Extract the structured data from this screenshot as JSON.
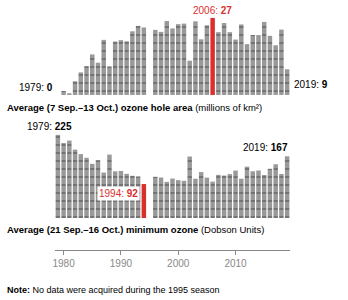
{
  "chart_data": [
    {
      "type": "bar",
      "title": "Average (7 Sep.–13 Oct.) ozone hole area",
      "unit_label": "(millions of km²)",
      "x": [
        1979,
        1980,
        1981,
        1982,
        1983,
        1984,
        1985,
        1986,
        1987,
        1988,
        1989,
        1990,
        1991,
        1992,
        1993,
        1994,
        1995,
        1996,
        1997,
        1998,
        1999,
        2000,
        2001,
        2002,
        2003,
        2004,
        2005,
        2006,
        2007,
        2008,
        2009,
        2010,
        2011,
        2012,
        2013,
        2014,
        2015,
        2016,
        2017,
        2018,
        2019
      ],
      "values": [
        0,
        1.4,
        0.6,
        4.8,
        7.9,
        10.1,
        14.2,
        11.3,
        19.3,
        10.0,
        18.7,
        19.2,
        18.8,
        22.3,
        24.2,
        23.6,
        null,
        22.8,
        22.1,
        25.9,
        23.3,
        24.8,
        25.0,
        12.0,
        25.8,
        19.5,
        24.4,
        27,
        22.0,
        25.2,
        22.0,
        19.4,
        24.7,
        17.8,
        21.0,
        20.9,
        25.6,
        20.7,
        17.4,
        22.9,
        9
      ],
      "color": "#999999",
      "colors": [
        "#999999",
        "#999999",
        "#999999",
        "#999999",
        "#999999",
        "#999999",
        "#999999",
        "#999999",
        "#999999",
        "#999999",
        "#999999",
        "#999999",
        "#999999",
        "#999999",
        "#999999",
        "#999999",
        "#999999",
        "#999999",
        "#999999",
        "#999999",
        "#999999",
        "#999999",
        "#999999",
        "#999999",
        "#999999",
        "#999999",
        "#999999",
        "#d9302e",
        "#999999",
        "#999999",
        "#999999",
        "#999999",
        "#999999",
        "#999999",
        "#999999",
        "#999999",
        "#999999",
        "#999999",
        "#999999",
        "#999999",
        "#999999"
      ],
      "xlim": [
        1978.5,
        2019.5
      ],
      "ylim": [
        0,
        28
      ],
      "tick_labels": false,
      "annotations": [
        {
          "x": 1979,
          "label": "1979:",
          "value": 0,
          "color": "#000000"
        },
        {
          "x": 2006,
          "label": "2006:",
          "value": 27,
          "color": "#d9302e"
        },
        {
          "x": 2019,
          "label": "2019:",
          "value": 9,
          "color": "#000000"
        }
      ]
    },
    {
      "type": "bar",
      "title": "Average (21 Sep.–16 Oct.) minimum ozone",
      "unit_label": "(Dobson Units)",
      "x": [
        1979,
        1980,
        1981,
        1982,
        1983,
        1984,
        1985,
        1986,
        1987,
        1988,
        1989,
        1990,
        1991,
        1992,
        1993,
        1994,
        1995,
        1996,
        1997,
        1998,
        1999,
        2000,
        2001,
        2002,
        2003,
        2004,
        2005,
        2006,
        2007,
        2008,
        2009,
        2010,
        2011,
        2012,
        2013,
        2014,
        2015,
        2016,
        2017,
        2018,
        2019
      ],
      "values": [
        225,
        203,
        209.5,
        185,
        172.9,
        163,
        146.6,
        156.6,
        123,
        171.6,
        126.4,
        127.3,
        119.6,
        114.3,
        112.6,
        92,
        null,
        111.6,
        109.3,
        97.9,
        106.8,
        102.6,
        100.8,
        166.5,
        106.3,
        124.3,
        109.1,
        98.6,
        116.9,
        115,
        118.9,
        128.5,
        106.3,
        139,
        126.6,
        128.6,
        116.5,
        133.2,
        145.5,
        119.3,
        167
      ],
      "color": "#999999",
      "colors": [
        "#999999",
        "#999999",
        "#999999",
        "#999999",
        "#999999",
        "#999999",
        "#999999",
        "#999999",
        "#999999",
        "#999999",
        "#999999",
        "#999999",
        "#999999",
        "#999999",
        "#999999",
        "#d9302e",
        "#999999",
        "#999999",
        "#999999",
        "#999999",
        "#999999",
        "#999999",
        "#999999",
        "#999999",
        "#999999",
        "#999999",
        "#999999",
        "#999999",
        "#999999",
        "#999999",
        "#999999",
        "#999999",
        "#999999",
        "#999999",
        "#999999",
        "#999999",
        "#999999",
        "#999999",
        "#999999",
        "#999999",
        "#999999"
      ],
      "xlim": [
        1978.5,
        2019.5
      ],
      "ylim": [
        0,
        230
      ],
      "xticks": [
        1980,
        1990,
        2000,
        2010
      ],
      "tick_labels": "x",
      "annotations": [
        {
          "x": 1979,
          "label": "1979:",
          "value": 225,
          "color": "#000000"
        },
        {
          "x": 1994,
          "label": "1994:",
          "value": 92,
          "color": "#d9302e"
        },
        {
          "x": 2019,
          "label": "2019:",
          "value": 167,
          "color": "#000000"
        }
      ]
    }
  ],
  "footnote": {
    "label": "Note:",
    "text": "No data were acquired during the 1995 season"
  }
}
